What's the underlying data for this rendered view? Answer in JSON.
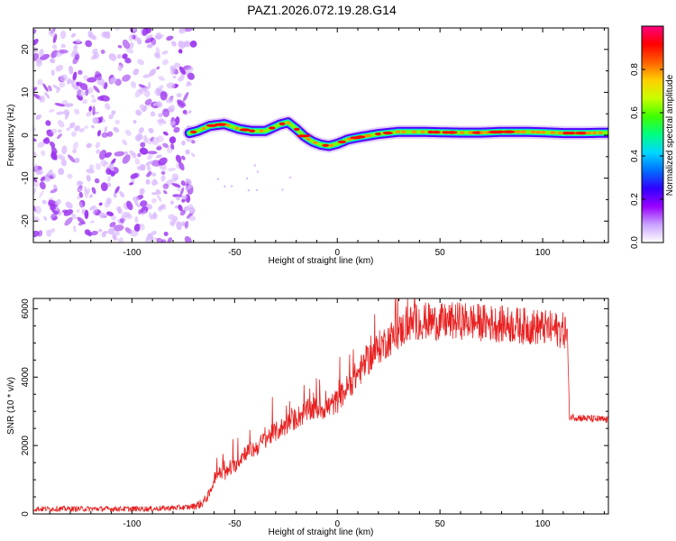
{
  "figure_title": "PAZ1.2026.072.19.28.G14",
  "colors": {
    "noise": "#9b32f0",
    "noise_light": "#d9b8ff",
    "snr_line": "#e82020",
    "colorbar_stops": [
      "#ffffff",
      "#c9a2ff",
      "#9900ff",
      "#3000ff",
      "#0070ff",
      "#00d8ff",
      "#00ff80",
      "#40ff00",
      "#c8ff00",
      "#ffd000",
      "#ff6000",
      "#ff0000",
      "#ff0080"
    ]
  },
  "chart_data": [
    {
      "type": "heatmap",
      "name": "spectrogram",
      "title": "",
      "xlabel": "Height of straight line (km)",
      "ylabel": "Frequency (Hz)",
      "xlim": [
        -148,
        132
      ],
      "ylim": [
        -25,
        25
      ],
      "xticks": [
        -100,
        -50,
        0,
        50,
        100
      ],
      "xtick_labels": [
        "-100",
        "-50",
        "0",
        "50",
        "100"
      ],
      "yticks": [
        -20,
        -10,
        0,
        10,
        20
      ],
      "ytick_labels": [
        "-20",
        "-10",
        "0",
        "10",
        "20"
      ],
      "noise_region_x": [
        -148,
        -70
      ],
      "ridge": {
        "x": [
          -72,
          -68,
          -62,
          -55,
          -48,
          -42,
          -35,
          -28,
          -24,
          -20,
          -16,
          -12,
          -8,
          -4,
          0,
          5,
          10,
          20,
          30,
          40,
          50,
          60,
          70,
          80,
          90,
          100,
          110,
          120,
          132
        ],
        "y": [
          0.5,
          1.0,
          2.2,
          2.6,
          1.5,
          1.0,
          1.0,
          2.5,
          3.0,
          1.5,
          -0.3,
          -1.5,
          -2.2,
          -2.5,
          -2.0,
          -1.0,
          -0.5,
          0.3,
          0.8,
          0.8,
          0.7,
          0.6,
          0.6,
          0.8,
          0.8,
          0.7,
          0.5,
          0.5,
          0.6
        ]
      },
      "colorbar": {
        "label": "Normalized spectral amplitude",
        "range": [
          0,
          1
        ],
        "ticks": [
          0,
          0.2,
          0.4,
          0.6,
          0.8
        ],
        "tick_labels": [
          "0.0",
          "0.2",
          "0.4",
          "0.6",
          "0.8"
        ]
      }
    },
    {
      "type": "line",
      "name": "snr",
      "title": "",
      "xlabel": "Height of straight line (km)",
      "ylabel": "SNR (10 * v/v)",
      "xlim": [
        -148,
        132
      ],
      "ylim": [
        0,
        6300
      ],
      "xticks": [
        -100,
        -50,
        0,
        50,
        100
      ],
      "xtick_labels": [
        "-100",
        "-50",
        "0",
        "50",
        "100"
      ],
      "yticks": [
        0,
        2000,
        4000,
        6000
      ],
      "ytick_labels": [
        "0",
        "2000",
        "4000",
        "6000"
      ],
      "series": [
        {
          "name": "SNR",
          "x": [
            -148,
            -120,
            -90,
            -72,
            -66,
            -62,
            -60,
            -58,
            -55,
            -50,
            -45,
            -40,
            -35,
            -30,
            -25,
            -20,
            -15,
            -10,
            -5,
            0,
            5,
            10,
            15,
            20,
            25,
            30,
            35,
            40,
            50,
            60,
            70,
            80,
            90,
            100,
            105,
            112,
            113,
            120,
            132
          ],
          "y": [
            150,
            150,
            150,
            200,
            300,
            600,
            1050,
            1200,
            1150,
            1400,
            1800,
            1900,
            2200,
            2400,
            2600,
            2800,
            3000,
            3100,
            3100,
            3300,
            3700,
            4100,
            4500,
            4850,
            5100,
            5300,
            5550,
            5650,
            5600,
            5650,
            5600,
            5550,
            5500,
            5450,
            5400,
            5350,
            2850,
            2800,
            2750
          ]
        }
      ]
    }
  ]
}
